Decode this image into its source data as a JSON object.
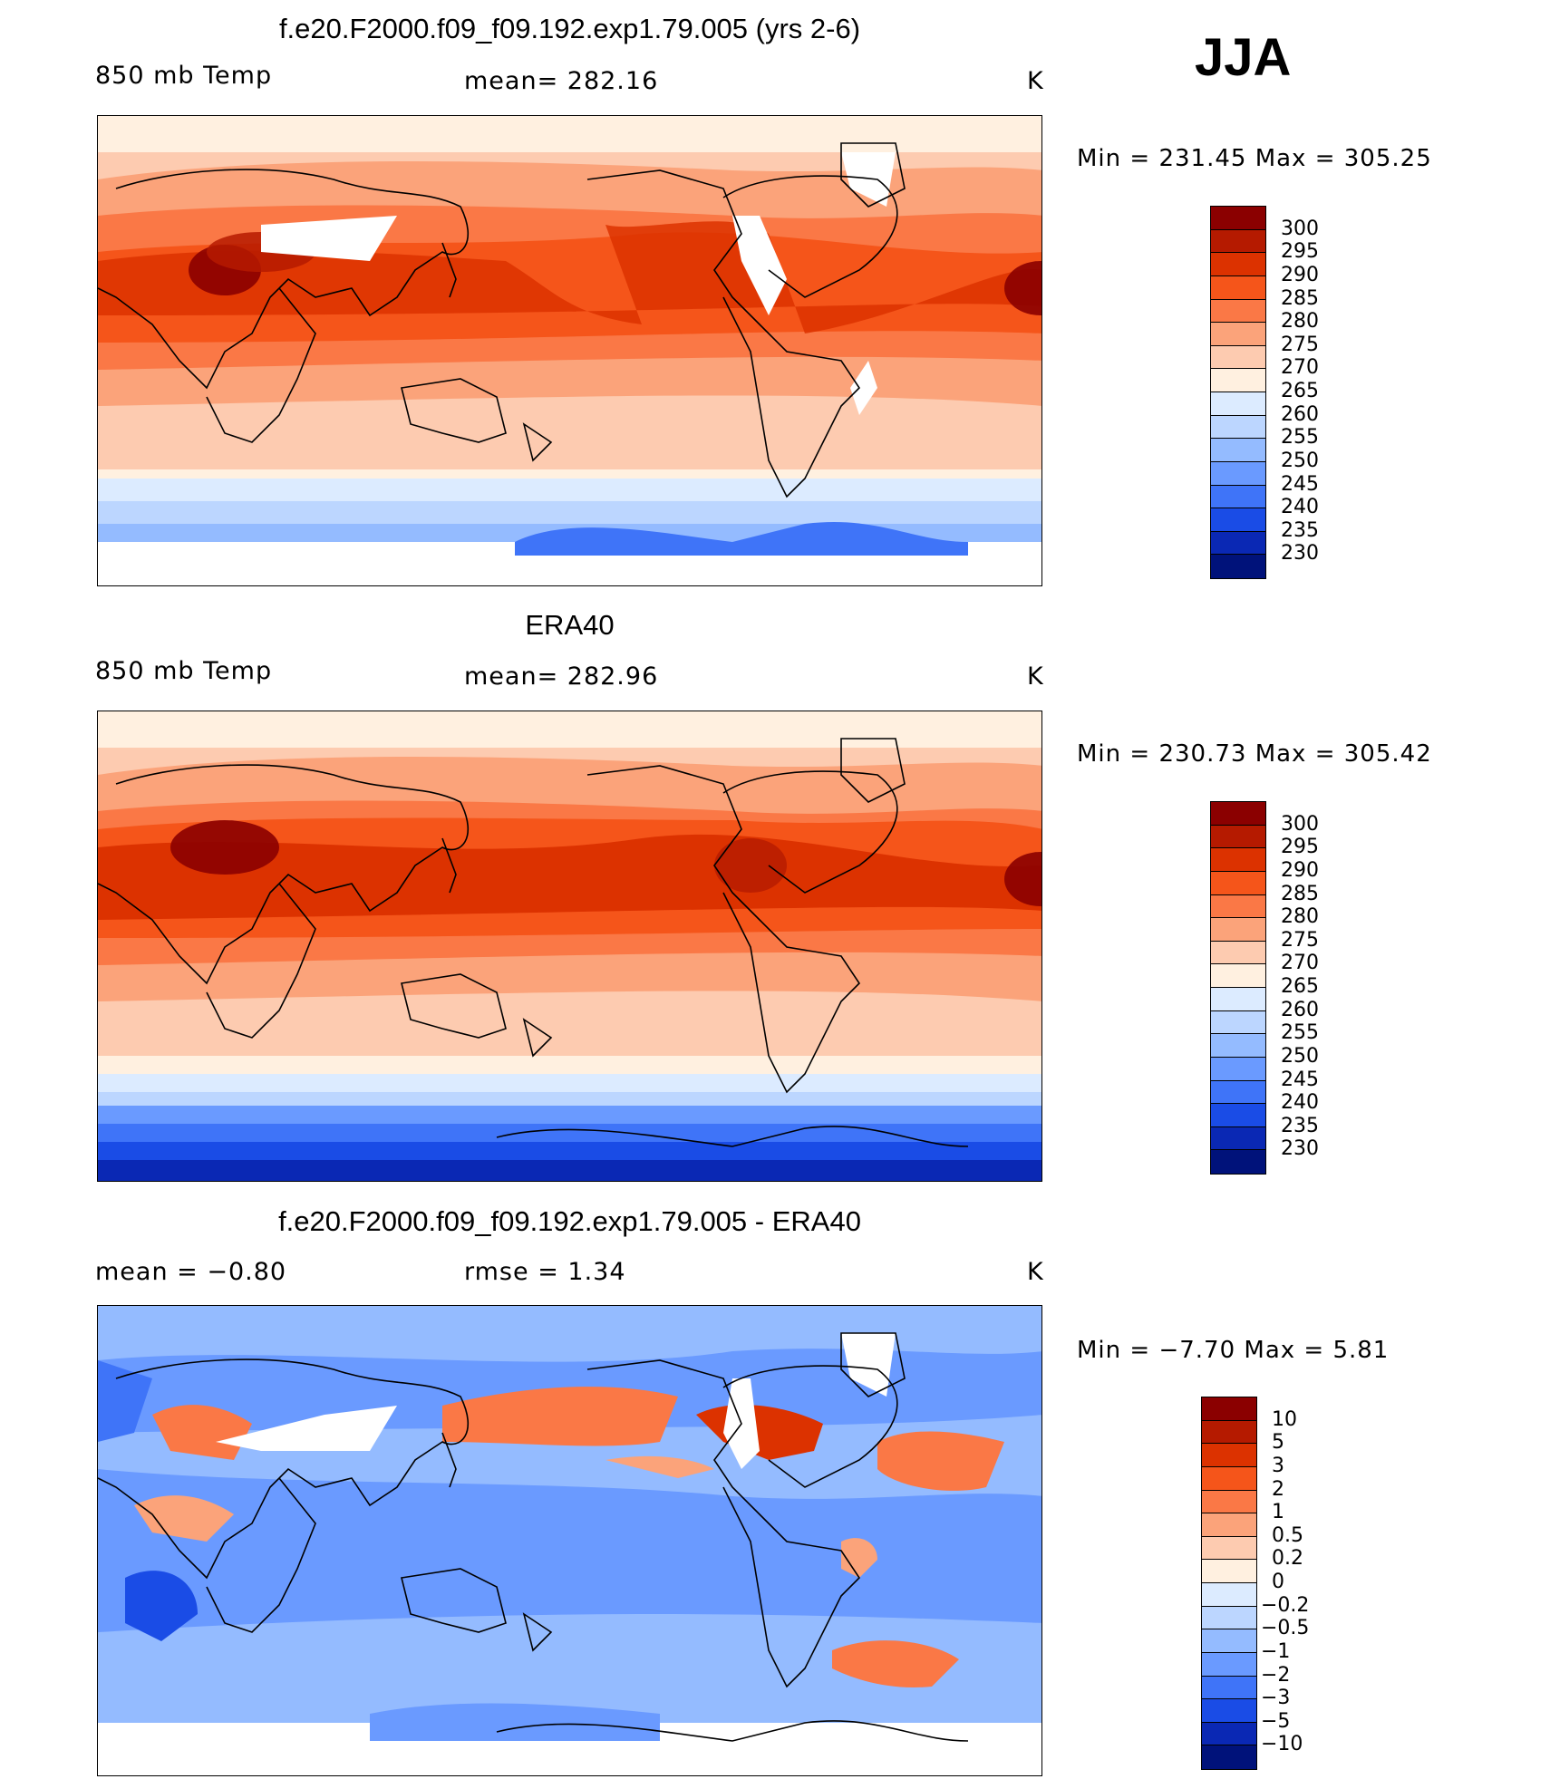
{
  "season": "JJA",
  "units": "K",
  "chart_data": [
    {
      "type": "heatmap",
      "id": "model",
      "title": "f.e20.F2000.f09_f09.192.exp1.79.005 (yrs 2-6)",
      "left_label": "850 mb Temp",
      "center_label": "mean=  282.16",
      "right_label": "K",
      "minmax_label": "Min  =  231.45  Max  =  305.25",
      "mean": 282.16,
      "min": 231.45,
      "max": 305.25,
      "colorbar": {
        "levels": [
          "300",
          "295",
          "290",
          "285",
          "280",
          "275",
          "270",
          "265",
          "260",
          "255",
          "250",
          "245",
          "240",
          "235",
          "230"
        ],
        "colors": [
          "#8b0000",
          "#b51a00",
          "#dc3200",
          "#f5551a",
          "#fa7846",
          "#fba37a",
          "#fdcbb0",
          "#fff0e0",
          "#dcebff",
          "#bcd6ff",
          "#94bbff",
          "#6a9aff",
          "#3f74f8",
          "#1a4ce6",
          "#0a28b4",
          "#00127a"
        ]
      }
    },
    {
      "type": "heatmap",
      "id": "obs",
      "title": "ERA40",
      "left_label": "850 mb Temp",
      "center_label": "mean=  282.96",
      "right_label": "K",
      "minmax_label": "Min  =  230.73  Max  =  305.42",
      "mean": 282.96,
      "min": 230.73,
      "max": 305.42,
      "colorbar": {
        "levels": [
          "300",
          "295",
          "290",
          "285",
          "280",
          "275",
          "270",
          "265",
          "260",
          "255",
          "250",
          "245",
          "240",
          "235",
          "230"
        ],
        "colors": [
          "#8b0000",
          "#b51a00",
          "#dc3200",
          "#f5551a",
          "#fa7846",
          "#fba37a",
          "#fdcbb0",
          "#fff0e0",
          "#dcebff",
          "#bcd6ff",
          "#94bbff",
          "#6a9aff",
          "#3f74f8",
          "#1a4ce6",
          "#0a28b4",
          "#00127a"
        ]
      }
    },
    {
      "type": "heatmap",
      "id": "diff",
      "title": "f.e20.F2000.f09_f09.192.exp1.79.005 - ERA40",
      "left_label": "mean  =    −0.80",
      "center_label": "rmse  =     1.34",
      "right_label": "K",
      "minmax_label": "Min  =   −7.70  Max  =     5.81",
      "mean": -0.8,
      "rmse": 1.34,
      "min": -7.7,
      "max": 5.81,
      "colorbar": {
        "levels": [
          "10",
          "5",
          "3",
          "2",
          "1",
          "0.5",
          "0.2",
          "0",
          "−0.2",
          "−0.5",
          "−1",
          "−2",
          "−3",
          "−5",
          "−10"
        ],
        "colors": [
          "#8b0000",
          "#b51a00",
          "#dc3200",
          "#f5551a",
          "#fa7846",
          "#fba37a",
          "#fdcbb0",
          "#fff0e0",
          "#dcebff",
          "#bcd6ff",
          "#94bbff",
          "#6a9aff",
          "#3f74f8",
          "#1a4ce6",
          "#0a28b4",
          "#00127a"
        ]
      }
    }
  ]
}
